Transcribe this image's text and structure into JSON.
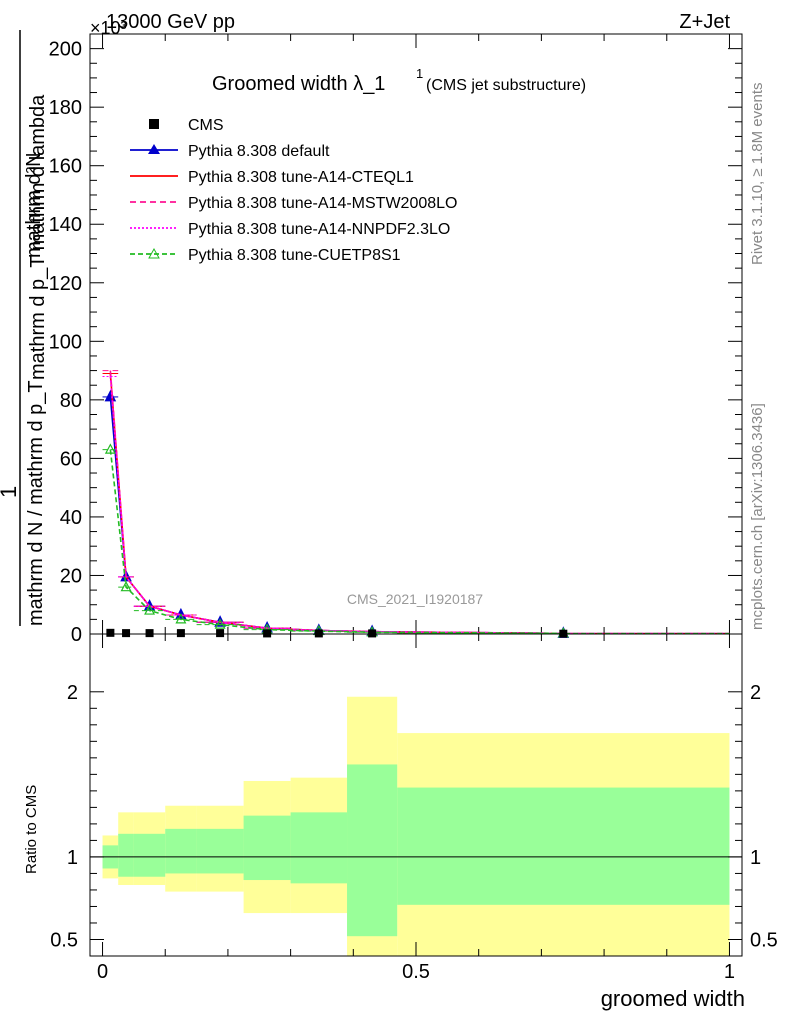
{
  "header": {
    "left": "13000 GeV pp",
    "right": "Z+Jet",
    "exponent": "×10³"
  },
  "side_labels": {
    "rivet": "Rivet 3.1.10, ≥ 1.8M events",
    "mcplots": "mcplots.cern.ch [arXiv:1306.3436]"
  },
  "watermark": "CMS_2021_I1920187",
  "title": {
    "main": "Groomed width",
    "lambda": "λ_1",
    "sup": "1",
    "sub": "(CMS jet substructure)"
  },
  "ylabel_top": {
    "numerator": "mathrm d²N",
    "denominator": "mathrm d p_T mathrm d lambda",
    "one": "1",
    "lower_denominator": "mathrm d N / mathrm d p_T"
  },
  "ratio_ylabel": "Ratio to CMS",
  "xlabel": "groomed width",
  "legend": [
    {
      "label": "CMS",
      "style": "data"
    },
    {
      "label": "Pythia 8.308 default",
      "style": "blue-triangle"
    },
    {
      "label": "Pythia 8.308 tune-A14-CTEQL1",
      "style": "red-solid"
    },
    {
      "label": "Pythia 8.308 tune-A14-MSTW2008LO",
      "style": "magenta-dashed"
    },
    {
      "label": "Pythia 8.308 tune-A14-NNPDF2.3LO",
      "style": "magenta-dotted"
    },
    {
      "label": "Pythia 8.308 tune-CUETP8S1",
      "style": "green-dashed-triangle"
    }
  ],
  "colors": {
    "default": "#0000cc",
    "cteql1": "#ff0000",
    "mstw": "#ff1493",
    "nnpdf": "#ff00ff",
    "cuetp8s1": "#22bb22",
    "band_inner": "#99ff99",
    "band_outer": "#ffff99"
  },
  "chart_data": {
    "type": "line",
    "bin_edges": [
      0,
      0.025,
      0.05,
      0.1,
      0.15,
      0.225,
      0.3,
      0.39,
      0.47,
      1.0
    ],
    "x": [
      0.0125,
      0.0375,
      0.075,
      0.125,
      0.1875,
      0.2625,
      0.345,
      0.43,
      0.735
    ],
    "ylim": [
      0,
      205
    ],
    "ytick_labels": [
      "0",
      "20",
      "40",
      "60",
      "80",
      "100",
      "120",
      "140",
      "160",
      "180",
      "200"
    ],
    "yticks": [
      0,
      20,
      40,
      60,
      80,
      100,
      120,
      140,
      160,
      180,
      200
    ],
    "xlim": [
      -0.02,
      1.02
    ],
    "xticks": [
      0,
      0.5,
      1
    ],
    "xtick_labels": [
      "0",
      "0.5",
      "1"
    ],
    "cms": [
      0.4,
      0.3,
      0.3,
      0.3,
      0.3,
      0.2,
      0.2,
      0.2,
      0.1
    ],
    "series": [
      {
        "name": "Pythia 8.308 default",
        "key": "default",
        "values": [
          81,
          19.5,
          9.5,
          6.5,
          4.0,
          2.0,
          1.2,
          0.8,
          0.2
        ]
      },
      {
        "name": "Pythia 8.308 tune-A14-CTEQL1",
        "key": "cteql1",
        "values": [
          89,
          19.5,
          9.5,
          6.5,
          4.0,
          2.0,
          1.2,
          0.8,
          0.2
        ]
      },
      {
        "name": "Pythia 8.308 tune-A14-MSTW2008LO",
        "key": "mstw",
        "values": [
          90,
          19.5,
          9.5,
          6.5,
          4.0,
          2.0,
          1.2,
          0.8,
          0.2
        ]
      },
      {
        "name": "Pythia 8.308 tune-A14-NNPDF2.3LO",
        "key": "nnpdf",
        "values": [
          88,
          19.5,
          9.5,
          6.5,
          4.0,
          2.0,
          1.2,
          0.8,
          0.2
        ]
      },
      {
        "name": "Pythia 8.308 tune-CUETP8S1",
        "key": "cuetp8s1",
        "values": [
          63,
          16.0,
          8.0,
          5.0,
          3.2,
          1.5,
          1.0,
          0.6,
          0.2
        ]
      }
    ],
    "ratio": {
      "ylim": [
        0.4,
        2.35
      ],
      "yticks": [
        0.5,
        1,
        2
      ],
      "ytick_labels": [
        "0.5",
        "1",
        "2"
      ],
      "inner_band": [
        [
          0.93,
          1.07
        ],
        [
          0.88,
          1.14
        ],
        [
          0.88,
          1.14
        ],
        [
          0.9,
          1.17
        ],
        [
          0.9,
          1.17
        ],
        [
          0.86,
          1.25
        ],
        [
          0.84,
          1.27
        ],
        [
          0.52,
          1.56
        ],
        [
          0.71,
          1.42
        ]
      ],
      "outer_band": [
        [
          0.87,
          1.13
        ],
        [
          0.83,
          1.27
        ],
        [
          0.83,
          1.27
        ],
        [
          0.79,
          1.31
        ],
        [
          0.79,
          1.31
        ],
        [
          0.66,
          1.46
        ],
        [
          0.66,
          1.48
        ],
        [
          0.32,
          1.97
        ],
        [
          0.32,
          1.75
        ]
      ]
    }
  }
}
